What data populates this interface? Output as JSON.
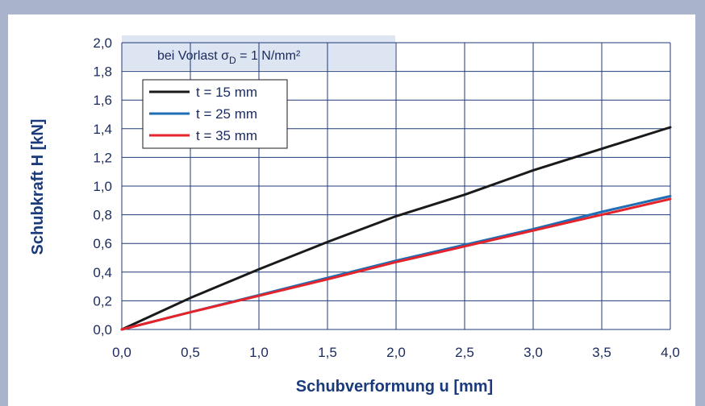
{
  "chart_data": {
    "type": "line",
    "xlabel": "Schubverformung u [mm]",
    "ylabel": "Schubkraft H [kN]",
    "xlim": [
      0,
      4
    ],
    "ylim": [
      0,
      2
    ],
    "xticks": [
      "0,0",
      "0,5",
      "1,0",
      "1,5",
      "2,0",
      "2,5",
      "3,0",
      "3,5",
      "4,0"
    ],
    "yticks": [
      "0,0",
      "0,2",
      "0,4",
      "0,6",
      "0,8",
      "1,0",
      "1,2",
      "1,4",
      "1,6",
      "1,8",
      "2,0"
    ],
    "grid": true,
    "legend_position": "top-left",
    "annotation": {
      "prefix": "bei Vorlast σ",
      "subscript": "D",
      "suffix": " = 1 N/mm²"
    },
    "series": [
      {
        "name": "t = 15 mm",
        "color": "#1a1a1a",
        "points": [
          [
            0,
            0
          ],
          [
            0.5,
            0.22
          ],
          [
            1.0,
            0.42
          ],
          [
            1.5,
            0.61
          ],
          [
            2.0,
            0.79
          ],
          [
            2.5,
            0.94
          ],
          [
            3.0,
            1.11
          ],
          [
            3.5,
            1.26
          ],
          [
            4.0,
            1.41
          ]
        ]
      },
      {
        "name": "t = 25 mm",
        "color": "#1f6db5",
        "points": [
          [
            0,
            0
          ],
          [
            0.5,
            0.12
          ],
          [
            1.0,
            0.24
          ],
          [
            1.5,
            0.36
          ],
          [
            2.0,
            0.48
          ],
          [
            2.5,
            0.59
          ],
          [
            3.0,
            0.7
          ],
          [
            3.5,
            0.82
          ],
          [
            4.0,
            0.93
          ]
        ]
      },
      {
        "name": "t = 35 mm",
        "color": "#e4232a",
        "points": [
          [
            0,
            0
          ],
          [
            0.5,
            0.12
          ],
          [
            1.0,
            0.235
          ],
          [
            1.5,
            0.35
          ],
          [
            2.0,
            0.47
          ],
          [
            2.5,
            0.58
          ],
          [
            3.0,
            0.69
          ],
          [
            3.5,
            0.8
          ],
          [
            4.0,
            0.91
          ]
        ]
      }
    ]
  }
}
